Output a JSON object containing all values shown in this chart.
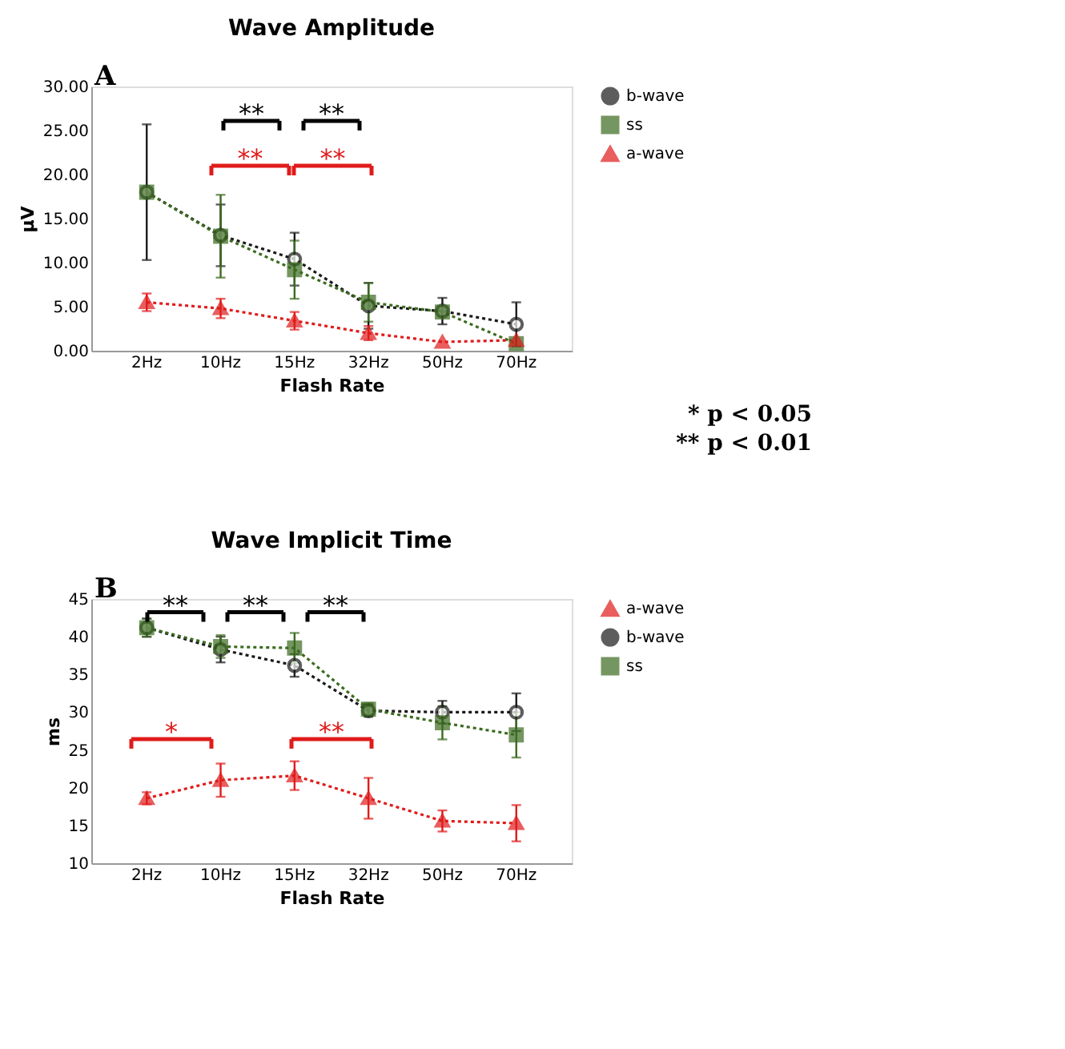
{
  "chart_data": [
    {
      "type": "line",
      "title": "Wave Amplitude",
      "xlabel": "Flash Rate",
      "ylabel": "µV",
      "categories": [
        "2Hz",
        "10Hz",
        "15Hz",
        "32Hz",
        "50Hz",
        "70Hz"
      ],
      "series": [
        {
          "name": "b-wave",
          "color": "#1a1a1a",
          "marker": "circle",
          "values": [
            18.0,
            13.1,
            10.4,
            5.1,
            4.5,
            3.0
          ],
          "errors": [
            7.7,
            3.5,
            3.0,
            2.6,
            1.5,
            2.5
          ]
        },
        {
          "name": "ss",
          "color": "#3b6b1f",
          "marker": "square",
          "values": [
            18.0,
            13.0,
            9.2,
            5.5,
            4.4,
            0.8
          ],
          "errors": [
            null,
            4.7,
            3.3,
            2.2,
            null,
            null
          ]
        },
        {
          "name": "a-wave",
          "color": "#e01b1b",
          "marker": "triangle",
          "values": [
            5.5,
            4.8,
            3.4,
            2.0,
            1.0,
            1.2
          ],
          "errors": [
            1.0,
            1.1,
            1.0,
            0.8,
            null,
            null
          ]
        }
      ],
      "ylim": [
        0,
        30
      ],
      "yticks": [
        {
          "value": 0,
          "label": "0.00"
        },
        {
          "value": 5,
          "label": "5.00"
        },
        {
          "value": 10,
          "label": "10.00"
        },
        {
          "value": 15,
          "label": "15.00"
        },
        {
          "value": 20,
          "label": "20.00"
        },
        {
          "value": 25,
          "label": "25.00"
        },
        {
          "value": 30,
          "label": "30.00"
        }
      ],
      "line_style": "dotted",
      "grid": false,
      "legend": "right",
      "annotations": [
        "A",
        "**",
        "**",
        "**",
        "**",
        "* p < 0.05",
        "** p < 0.01"
      ]
    },
    {
      "type": "line",
      "title": "Wave Implicit Time",
      "xlabel": "Flash Rate",
      "ylabel": "ms",
      "categories": [
        "2Hz",
        "10Hz",
        "15Hz",
        "32Hz",
        "50Hz",
        "70Hz"
      ],
      "series": [
        {
          "name": "a-wave",
          "color": "#e01b1b",
          "marker": "triangle",
          "values": [
            18.6,
            21.0,
            21.6,
            18.6,
            15.6,
            15.3
          ],
          "errors": [
            0.8,
            2.2,
            1.9,
            2.7,
            1.4,
            2.4
          ]
        },
        {
          "name": "b-wave",
          "color": "#1a1a1a",
          "marker": "circle",
          "values": [
            41.2,
            38.3,
            36.2,
            30.2,
            30.0,
            30.0
          ],
          "errors": [
            1.2,
            1.7,
            1.5,
            0.8,
            1.5,
            2.5
          ]
        },
        {
          "name": "ss",
          "color": "#3b6b1f",
          "marker": "square",
          "values": [
            41.2,
            38.7,
            38.5,
            30.4,
            28.6,
            27.0
          ],
          "errors": [
            1.2,
            1.5,
            2.0,
            0.8,
            2.2,
            3.0
          ]
        }
      ],
      "ylim": [
        10,
        45
      ],
      "yticks": [
        10,
        15,
        20,
        25,
        30,
        35,
        40,
        45
      ],
      "line_style": "dotted",
      "grid": false,
      "legend": "right",
      "annotations": [
        "B",
        "**",
        "**",
        "**",
        "*",
        "**"
      ]
    }
  ]
}
